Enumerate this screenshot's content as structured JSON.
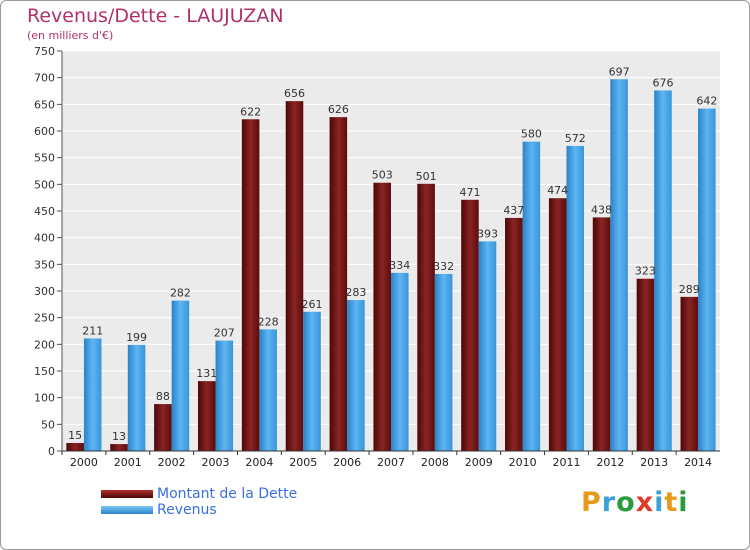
{
  "chart_data": {
    "type": "bar",
    "title": "Revenus/Dette - LAUJUZAN",
    "subtitle": "(en milliers d'€)",
    "xlabel": "",
    "ylabel": "",
    "categories": [
      "2000",
      "2001",
      "2002",
      "2003",
      "2004",
      "2005",
      "2006",
      "2007",
      "2008",
      "2009",
      "2010",
      "2011",
      "2012",
      "2013",
      "2014"
    ],
    "series": [
      {
        "name": "Montant de la Dette",
        "color": "#7a1616",
        "values": [
          15,
          13,
          88,
          131,
          622,
          656,
          626,
          503,
          501,
          471,
          437,
          474,
          438,
          323,
          289
        ]
      },
      {
        "name": "Revenus",
        "color": "#3a9ee4",
        "values": [
          211,
          199,
          282,
          207,
          228,
          261,
          283,
          334,
          332,
          393,
          580,
          572,
          697,
          676,
          642
        ]
      }
    ],
    "ylim": [
      0,
      750
    ],
    "yticks": [
      0,
      50,
      100,
      150,
      200,
      250,
      300,
      350,
      400,
      450,
      500,
      550,
      600,
      650,
      700,
      750
    ],
    "grid": true,
    "legend_position": "bottom-left"
  },
  "logo": {
    "letters": [
      "P",
      "r",
      "o",
      "x",
      "i",
      "t",
      "i"
    ],
    "colors": [
      "#e89a1c",
      "#3ba2d8",
      "#2a9a3a",
      "#e23a2a",
      "#3ba2d8",
      "#e89a1c",
      "#2a9a3a"
    ]
  }
}
